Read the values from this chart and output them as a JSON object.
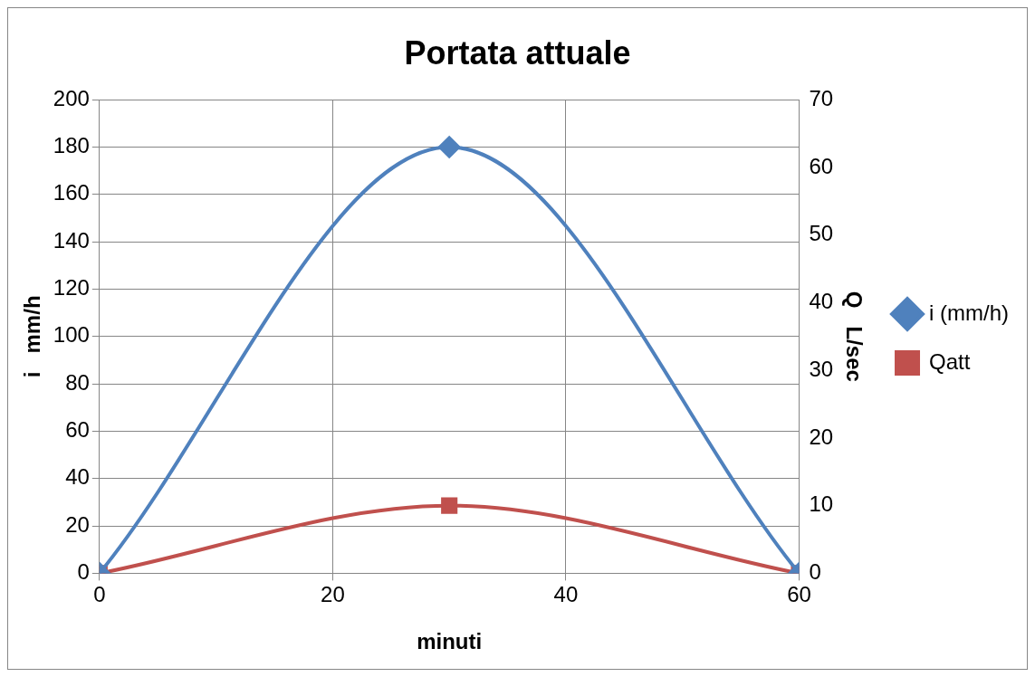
{
  "chart_data": {
    "type": "line",
    "title": "Portata attuale",
    "xlabel": "minuti",
    "ylabel": "i   mm/h",
    "y2label": "Q   L/sec",
    "x": [
      0,
      30,
      60
    ],
    "xlim": [
      0,
      60
    ],
    "xticks": [
      0,
      20,
      40,
      60
    ],
    "ylim": [
      0,
      200
    ],
    "yticks": [
      0,
      20,
      40,
      60,
      80,
      100,
      120,
      140,
      160,
      180,
      200
    ],
    "y2lim": [
      0,
      70
    ],
    "y2ticks": [
      0,
      10,
      20,
      30,
      40,
      50,
      60,
      70
    ],
    "series": [
      {
        "name": "i (mm/h)",
        "color": "#4f81bd",
        "values": [
          0,
          180,
          0
        ],
        "marker": "diamond"
      },
      {
        "name": "Qatt",
        "color": "#c0504d",
        "values": [
          0,
          10,
          0
        ],
        "axis": "y2",
        "marker": "square"
      }
    ],
    "grid": true,
    "legend": "right",
    "line_style": "solid"
  }
}
